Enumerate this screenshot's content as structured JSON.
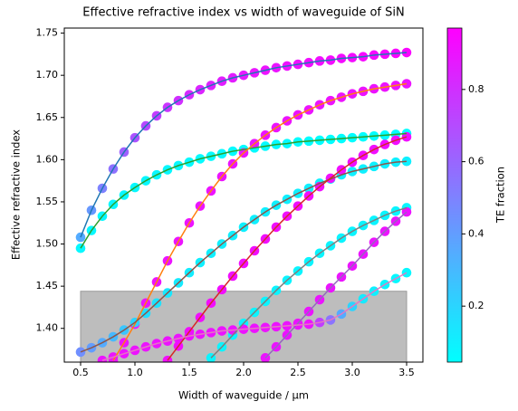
{
  "chart_data": {
    "type": "scatter",
    "title": "Effective refractive index vs width of waveguide of SiN",
    "x_label": "Width of waveguide / µm",
    "y_label": "Effective refractive index",
    "colorbar_label": "TE fraction",
    "colormap": "cool",
    "clim": [
      0.045,
      0.97
    ],
    "cticks": [
      0.2,
      0.4,
      0.6,
      0.8
    ],
    "xlim": [
      0.35,
      3.65
    ],
    "ylim": [
      1.36,
      1.756
    ],
    "xticks": [
      0.5,
      {
        "value": 1,
        "label": "1.0"
      },
      1.5,
      {
        "value": 2,
        "label": "2.0"
      },
      2.5,
      {
        "value": 3,
        "label": "3.0"
      },
      3.5
    ],
    "yticks": [
      {
        "value": 1.4,
        "label": "1.40"
      },
      1.45,
      {
        "value": 1.5,
        "label": "1.50"
      },
      1.55,
      {
        "value": 1.6,
        "label": "1.60"
      },
      1.65,
      {
        "value": 1.7,
        "label": "1.70"
      },
      1.75
    ],
    "shade_x": [
      0.5,
      3.5
    ],
    "shade_top": 1.444,
    "x": [
      0.5,
      0.6,
      0.7,
      0.8,
      0.9,
      1.0,
      1.1,
      1.2,
      1.3,
      1.4,
      1.5,
      1.6,
      1.7,
      1.8,
      1.9,
      2.0,
      2.1,
      2.2,
      2.3,
      2.4,
      2.5,
      2.6,
      2.7,
      2.8,
      2.9,
      3.0,
      3.1,
      3.2,
      3.3,
      3.4,
      3.5
    ],
    "series": [
      {
        "color": "#1f77b4",
        "values": [
          1.508,
          1.54,
          1.566,
          1.589,
          1.609,
          1.626,
          1.64,
          1.652,
          1.662,
          1.67,
          1.677,
          1.683,
          1.688,
          1.693,
          1.697,
          1.7,
          1.703,
          1.706,
          1.709,
          1.711,
          1.713,
          1.715,
          1.717,
          1.718,
          1.72,
          1.721,
          1.722,
          1.724,
          1.725,
          1.726,
          1.727
        ],
        "te": [
          0.35,
          0.42,
          0.5,
          0.56,
          0.62,
          0.67,
          0.71,
          0.75,
          0.78,
          0.8,
          0.82,
          0.84,
          0.85,
          0.86,
          0.87,
          0.88,
          0.89,
          0.9,
          0.9,
          0.91,
          0.91,
          0.92,
          0.92,
          0.93,
          0.93,
          0.93,
          0.94,
          0.94,
          0.94,
          0.95,
          0.95
        ]
      },
      {
        "color": "#2ca02c",
        "values": [
          1.495,
          1.516,
          1.533,
          1.547,
          1.558,
          1.567,
          1.575,
          1.582,
          1.588,
          1.593,
          1.597,
          1.601,
          1.604,
          1.607,
          1.61,
          1.612,
          1.614,
          1.616,
          1.618,
          1.619,
          1.621,
          1.622,
          1.623,
          1.624,
          1.625,
          1.626,
          1.627,
          1.628,
          1.629,
          1.63,
          1.631
        ],
        "te": [
          0.07,
          0.07,
          0.07,
          0.07,
          0.07,
          0.07,
          0.07,
          0.07,
          0.07,
          0.07,
          0.06,
          0.06,
          0.06,
          0.06,
          0.06,
          0.06,
          0.06,
          0.06,
          0.06,
          0.06,
          0.05,
          0.05,
          0.05,
          0.05,
          0.05,
          0.05,
          0.05,
          0.05,
          0.05,
          0.05,
          0.05
        ]
      },
      {
        "color": "#ff7f0e",
        "values": [
          null,
          null,
          null,
          1.362,
          1.383,
          1.405,
          1.43,
          1.455,
          1.48,
          1.503,
          1.525,
          1.545,
          1.563,
          1.58,
          1.595,
          1.608,
          1.619,
          1.629,
          1.638,
          1.646,
          1.653,
          1.659,
          1.665,
          1.67,
          1.674,
          1.678,
          1.681,
          1.684,
          1.686,
          1.688,
          1.69
        ],
        "te": [
          null,
          null,
          null,
          0.9,
          0.9,
          0.9,
          0.9,
          0.9,
          0.9,
          0.9,
          0.9,
          0.9,
          0.9,
          0.9,
          0.9,
          0.9,
          0.9,
          0.9,
          0.9,
          0.9,
          0.9,
          0.9,
          0.9,
          0.9,
          0.9,
          0.9,
          0.9,
          0.9,
          0.9,
          0.9,
          0.9
        ]
      },
      {
        "color": "#8c564b",
        "values": [
          1.372,
          1.377,
          1.383,
          1.39,
          1.398,
          1.407,
          1.418,
          1.43,
          1.442,
          1.454,
          1.466,
          1.478,
          1.489,
          1.5,
          1.51,
          1.52,
          1.529,
          1.538,
          1.546,
          1.553,
          1.56,
          1.566,
          1.572,
          1.577,
          1.582,
          1.586,
          1.589,
          1.592,
          1.595,
          1.597,
          1.598
        ],
        "te": [
          0.45,
          0.4,
          0.35,
          0.3,
          0.25,
          0.2,
          0.17,
          0.15,
          0.13,
          0.12,
          0.11,
          0.1,
          0.1,
          0.1,
          0.1,
          0.1,
          0.1,
          0.1,
          0.1,
          0.1,
          0.1,
          0.1,
          0.1,
          0.1,
          0.1,
          0.1,
          0.1,
          0.1,
          0.1,
          0.1,
          0.1
        ]
      },
      {
        "color": "#d62728",
        "values": [
          null,
          null,
          null,
          null,
          null,
          null,
          null,
          null,
          1.362,
          1.379,
          1.396,
          1.413,
          1.43,
          1.446,
          1.462,
          1.477,
          1.492,
          1.506,
          1.52,
          1.533,
          1.545,
          1.557,
          1.568,
          1.578,
          1.588,
          1.597,
          1.605,
          1.612,
          1.618,
          1.623,
          1.627
        ],
        "te": [
          null,
          null,
          null,
          null,
          null,
          null,
          null,
          null,
          0.92,
          0.92,
          0.92,
          0.92,
          0.92,
          0.92,
          0.92,
          0.92,
          0.92,
          0.92,
          0.92,
          0.92,
          0.92,
          0.92,
          0.92,
          0.92,
          0.92,
          0.92,
          0.92,
          0.92,
          0.92,
          0.92,
          0.92
        ]
      },
      {
        "color": "#7f7f7f",
        "values": [
          null,
          null,
          null,
          null,
          null,
          null,
          null,
          null,
          null,
          null,
          null,
          null,
          1.365,
          1.378,
          1.392,
          1.406,
          1.419,
          1.432,
          1.445,
          1.457,
          1.468,
          1.479,
          1.489,
          1.498,
          1.507,
          1.515,
          1.522,
          1.528,
          1.534,
          1.539,
          1.543
        ],
        "te": [
          null,
          null,
          null,
          null,
          null,
          null,
          null,
          null,
          null,
          null,
          null,
          null,
          0.08,
          0.08,
          0.08,
          0.08,
          0.08,
          0.08,
          0.08,
          0.08,
          0.08,
          0.08,
          0.08,
          0.08,
          0.08,
          0.08,
          0.08,
          0.08,
          0.08,
          0.08,
          0.08
        ]
      },
      {
        "color": "#9467bd",
        "values": [
          null,
          null,
          null,
          null,
          null,
          null,
          null,
          null,
          null,
          null,
          null,
          null,
          null,
          null,
          null,
          null,
          null,
          1.365,
          1.378,
          1.392,
          1.406,
          1.42,
          1.434,
          1.448,
          1.461,
          1.474,
          1.488,
          1.502,
          1.515,
          1.527,
          1.538
        ],
        "te": [
          null,
          null,
          null,
          null,
          null,
          null,
          null,
          null,
          null,
          null,
          null,
          null,
          null,
          null,
          null,
          null,
          null,
          0.9,
          0.9,
          0.9,
          0.9,
          0.9,
          0.9,
          0.9,
          0.9,
          0.9,
          0.9,
          0.9,
          0.9,
          0.9,
          0.9
        ]
      },
      {
        "color": "#e377c2",
        "values": [
          null,
          null,
          1.362,
          1.366,
          1.37,
          1.374,
          1.378,
          1.382,
          1.385,
          1.388,
          1.391,
          1.393,
          1.395,
          1.397,
          1.398,
          1.399,
          1.4,
          1.401,
          1.402,
          1.403,
          1.404,
          1.405,
          1.407,
          1.41,
          1.417,
          1.426,
          1.435,
          1.444,
          1.452,
          1.459,
          1.466
        ],
        "te": [
          null,
          null,
          0.9,
          0.9,
          0.9,
          0.9,
          0.9,
          0.9,
          0.9,
          0.9,
          0.9,
          0.9,
          0.9,
          0.9,
          0.9,
          0.9,
          0.9,
          0.9,
          0.9,
          0.9,
          0.9,
          0.9,
          0.75,
          0.55,
          0.35,
          0.2,
          0.12,
          0.1,
          0.08,
          0.07,
          0.07
        ]
      }
    ]
  }
}
